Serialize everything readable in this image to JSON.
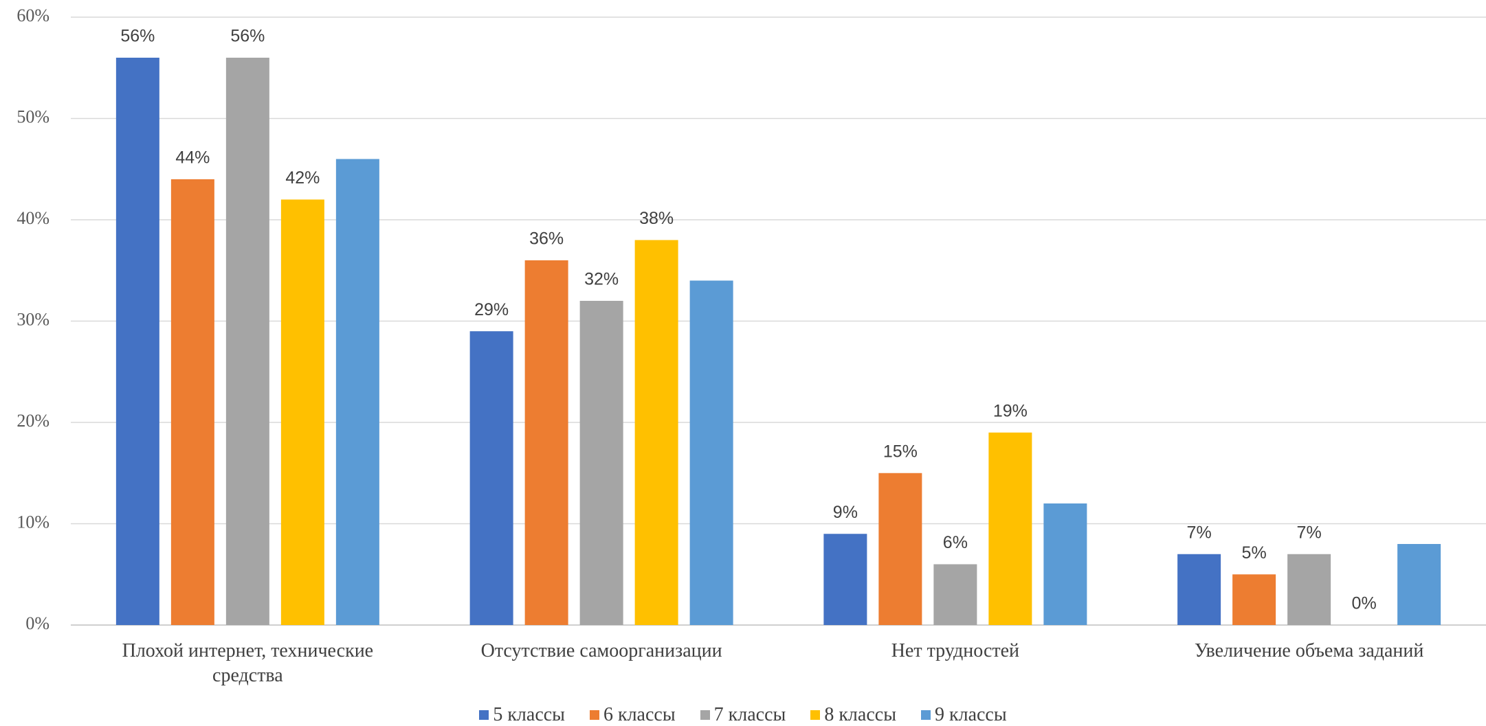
{
  "chart_data": {
    "type": "bar",
    "categories": [
      "Плохой интернет, технические средства",
      "Отсутствие самоорганизации",
      "Нет трудностей",
      "Увеличение объема заданий"
    ],
    "series": [
      {
        "name": "5 классы",
        "color": "#4472c4",
        "values": [
          56,
          29,
          9,
          7
        ],
        "value_labels": [
          "56%",
          "29%",
          "9%",
          "7%"
        ]
      },
      {
        "name": "6 классы",
        "color": "#ed7d31",
        "values": [
          44,
          36,
          15,
          5
        ],
        "value_labels": [
          "44%",
          "36%",
          "15%",
          "5%"
        ]
      },
      {
        "name": "7 классы",
        "color": "#a5a5a5",
        "values": [
          56,
          32,
          6,
          7
        ],
        "value_labels": [
          "56%",
          "32%",
          "6%",
          "7%"
        ]
      },
      {
        "name": "8 классы",
        "color": "#ffc000",
        "values": [
          42,
          38,
          19,
          0
        ],
        "value_labels": [
          "42%",
          "38%",
          "19%",
          "0%"
        ]
      },
      {
        "name": "9 классы",
        "color": "#5b9bd5",
        "values": [
          46,
          34,
          12,
          8
        ]
      }
    ],
    "ylim": [
      0,
      60
    ],
    "yticks": [
      {
        "value": 0,
        "label": "0%"
      },
      {
        "value": 10,
        "label": "10%"
      },
      {
        "value": 20,
        "label": "20%"
      },
      {
        "value": 30,
        "label": "30%"
      },
      {
        "value": 40,
        "label": "40%"
      },
      {
        "value": 50,
        "label": "50%"
      },
      {
        "value": 60,
        "label": "60%"
      }
    ],
    "grid": true,
    "legend": "bottom"
  }
}
